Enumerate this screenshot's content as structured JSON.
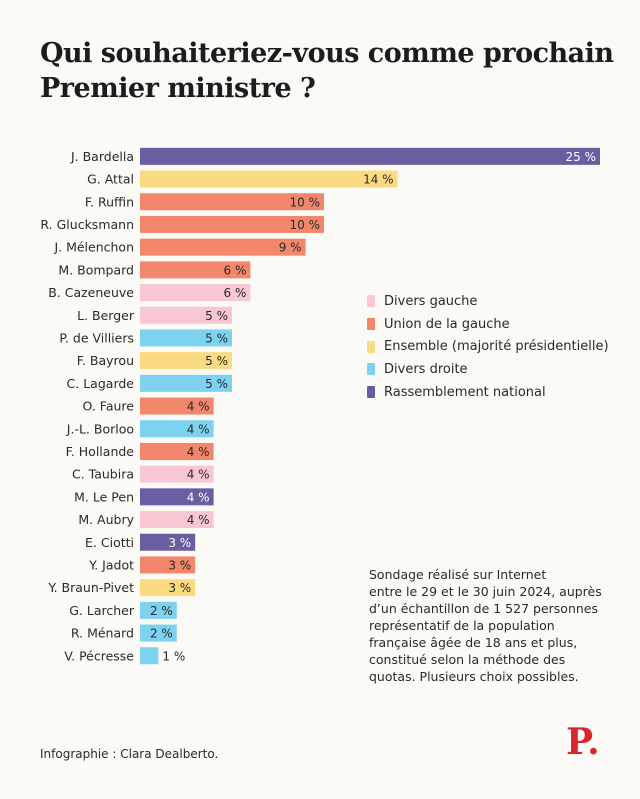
{
  "title_line1": "Qui souhaiteriez-vous comme prochain",
  "title_line2": "Premier ministre ?",
  "colors": {
    "Divers gauche": "#f9c6d4",
    "Union de la gauche": "#f2876b",
    "Ensemble (majorité présidentielle)": "#fbdb82",
    "Divers droite": "#7dd2f0",
    "Rassemblement national": "#6b5da1"
  },
  "legend": [
    {
      "label": "Divers gauche",
      "color": "#f9c6d4"
    },
    {
      "label": "Union de la gauche",
      "color": "#f2876b"
    },
    {
      "label": "Ensemble (majorité présidentielle)",
      "color": "#fbdb82"
    },
    {
      "label": "Divers droite",
      "color": "#7dd2f0"
    },
    {
      "label": "Rassemblement national",
      "color": "#6b5da1"
    }
  ],
  "chart_data": {
    "type": "bar",
    "orientation": "horizontal",
    "title": "Qui souhaiteriez-vous comme prochain Premier ministre ?",
    "xlim": [
      0,
      25
    ],
    "unit": "%",
    "categories": [
      "J. Bardella",
      "G. Attal",
      "F. Ruffin",
      "R. Glucksmann",
      "J. Mélenchon",
      "M. Bompard",
      "B. Cazeneuve",
      "L. Berger",
      "P. de Villiers",
      "F. Bayrou",
      "C. Lagarde",
      "O. Faure",
      "J.-L. Borloo",
      "F. Hollande",
      "C. Taubira",
      "M. Le Pen",
      "M. Aubry",
      "E. Ciotti",
      "Y. Jadot",
      "Y. Braun-Pivet",
      "G. Larcher",
      "R. Ménard",
      "V. Pécresse"
    ],
    "values": [
      25,
      14,
      10,
      10,
      9,
      6,
      6,
      5,
      5,
      5,
      5,
      4,
      4,
      4,
      4,
      4,
      4,
      3,
      3,
      3,
      2,
      2,
      1
    ],
    "labels": [
      "25 %",
      "14 %",
      "10 %",
      "10 %",
      "9 %",
      "6 %",
      "6 %",
      "5 %",
      "5 %",
      "5 %",
      "5 %",
      "4 %",
      "4 %",
      "4 %",
      "4 %",
      "4 %",
      "4 %",
      "3 %",
      "3 %",
      "3 %",
      "2 %",
      "2 %",
      "1 %"
    ],
    "groups": [
      "Rassemblement national",
      "Ensemble (majorité présidentielle)",
      "Union de la gauche",
      "Union de la gauche",
      "Union de la gauche",
      "Union de la gauche",
      "Divers gauche",
      "Divers gauche",
      "Divers droite",
      "Ensemble (majorité présidentielle)",
      "Divers droite",
      "Union de la gauche",
      "Divers droite",
      "Union de la gauche",
      "Divers gauche",
      "Rassemblement national",
      "Divers gauche",
      "Rassemblement national",
      "Union de la gauche",
      "Ensemble (majorité présidentielle)",
      "Divers droite",
      "Divers droite",
      "Divers droite"
    ]
  },
  "note_lines": [
    "Sondage réalisé sur Internet",
    "entre le 29 et le 30 juin 2024, auprès",
    "d’un échantillon de 1 527 personnes",
    "représentatif de la population",
    "française âgée de 18 ans et plus,",
    "constitué selon la méthode des",
    "quotas. Plusieurs choix possibles."
  ],
  "credit": "Infographie : Clara Dealberto.",
  "logo": "P."
}
